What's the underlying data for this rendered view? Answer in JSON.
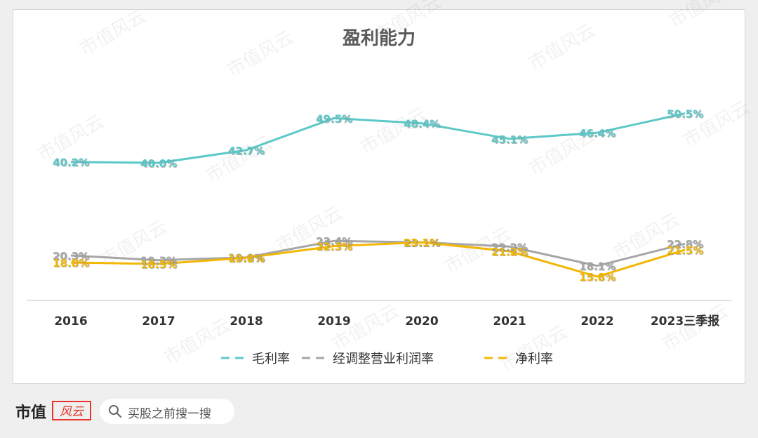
{
  "colors": {
    "gross": "#5cc8c8",
    "adjusted": "#a6a6a6",
    "net": "#f2b705",
    "brand_red": "#e8342a"
  },
  "chart_data": {
    "type": "line",
    "title": "盈利能力",
    "categories": [
      "2016",
      "2017",
      "2018",
      "2019",
      "2020",
      "2021",
      "2022",
      "2023三季报"
    ],
    "ylim": [
      0,
      60
    ],
    "xlabel": "",
    "ylabel": "",
    "grid": false,
    "legend_position": "bottom",
    "series": [
      {
        "name": "毛利率",
        "values": [
          40.2,
          40.0,
          42.7,
          49.5,
          48.4,
          45.1,
          46.4,
          50.5
        ],
        "labels": [
          "40.2%",
          "40.0%",
          "42.7%",
          "49.5%",
          "48.4%",
          "45.1%",
          "46.4%",
          "50.5%"
        ]
      },
      {
        "name": "经调整营业利润率",
        "values": [
          20.3,
          19.3,
          19.9,
          23.4,
          23.1,
          22.2,
          18.1,
          22.8
        ],
        "labels": [
          "20.3%",
          "19.3%",
          "19.9%",
          "23.4%",
          "23.1%",
          "22.2%",
          "18.1%",
          "22.8%"
        ]
      },
      {
        "name": "净利率",
        "values": [
          18.8,
          18.5,
          19.8,
          22.3,
          23.1,
          21.2,
          15.8,
          21.5
        ],
        "labels": [
          "18.8%",
          "18.5%",
          "19.8%",
          "22.3%",
          "23.1%",
          "21.2%",
          "15.8%",
          "21.5%"
        ]
      }
    ]
  },
  "watermark": "市值风云",
  "footer": {
    "brand": "市值",
    "logo_text": "风云",
    "search_text": "买股之前搜一搜"
  }
}
